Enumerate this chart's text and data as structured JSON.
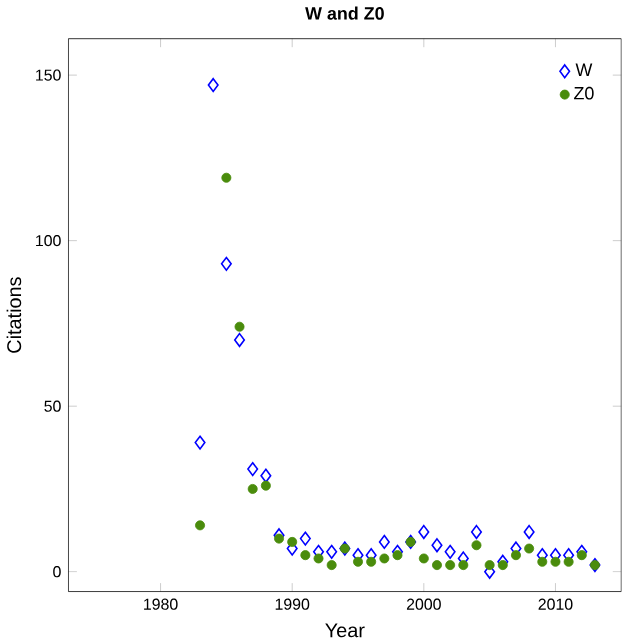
{
  "chart_data": {
    "type": "scatter",
    "title": "W and Z0",
    "xlabel": "Year",
    "ylabel": "Citations",
    "xlim": [
      1973,
      2015
    ],
    "ylim": [
      -6,
      161
    ],
    "xticks": [
      1980,
      1990,
      2000,
      2010
    ],
    "yticks": [
      0,
      50,
      100,
      150
    ],
    "grid": false,
    "legend": "top right",
    "series": [
      {
        "name": "W",
        "color": "#0000ff",
        "marker": "diamond",
        "x": [
          1983,
          1984,
          1985,
          1986,
          1987,
          1988,
          1989,
          1990,
          1991,
          1992,
          1993,
          1994,
          1995,
          1996,
          1997,
          1998,
          1999,
          2000,
          2001,
          2002,
          2003,
          2004,
          2005,
          2006,
          2007,
          2008,
          2009,
          2010,
          2011,
          2012,
          2013
        ],
        "values": [
          39,
          147,
          93,
          70,
          31,
          29,
          11,
          7,
          10,
          6,
          6,
          7,
          5,
          5,
          9,
          6,
          9,
          12,
          8,
          6,
          4,
          12,
          0,
          3,
          7,
          12,
          5,
          5,
          5,
          6,
          2
        ]
      },
      {
        "name": "Z0",
        "color": "#4a8c0c",
        "marker": "circle",
        "x": [
          1983,
          1985,
          1986,
          1987,
          1988,
          1989,
          1990,
          1991,
          1992,
          1993,
          1994,
          1995,
          1996,
          1997,
          1998,
          1999,
          2000,
          2001,
          2002,
          2003,
          2004,
          2005,
          2006,
          2007,
          2008,
          2009,
          2010,
          2011,
          2012,
          2013
        ],
        "values": [
          14,
          119,
          74,
          25,
          26,
          10,
          9,
          5,
          4,
          2,
          7,
          3,
          3,
          4,
          5,
          9,
          4,
          2,
          2,
          2,
          8,
          2,
          2,
          5,
          7,
          3,
          3,
          3,
          5,
          2
        ]
      }
    ]
  }
}
